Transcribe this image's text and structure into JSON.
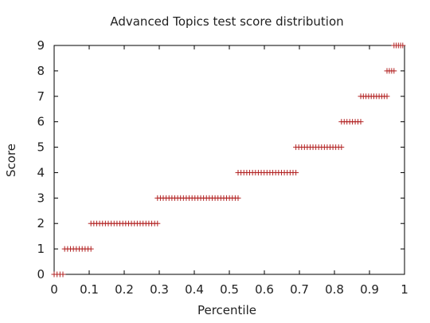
{
  "chart_data": {
    "type": "scatter",
    "title": "Advanced Topics test score distribution",
    "xlabel": "Percentile",
    "ylabel": "Score",
    "xlim": [
      0,
      1
    ],
    "ylim": [
      0,
      9
    ],
    "xticks": [
      "0",
      "0.1",
      "0.2",
      "0.3",
      "0.4",
      "0.5",
      "0.6",
      "0.7",
      "0.8",
      "0.9",
      "1"
    ],
    "yticks": [
      "0",
      "1",
      "2",
      "3",
      "4",
      "5",
      "6",
      "7",
      "8",
      "9"
    ],
    "marker": "plus",
    "marker_color": "#b22222",
    "grid": false,
    "legend": "none",
    "series": [
      {
        "score": 0,
        "x_range": [
          0.0,
          0.025
        ],
        "count": 4
      },
      {
        "score": 1,
        "x_range": [
          0.03,
          0.105
        ],
        "count": 10
      },
      {
        "score": 2,
        "x_range": [
          0.105,
          0.295
        ],
        "count": 24
      },
      {
        "score": 3,
        "x_range": [
          0.295,
          0.525
        ],
        "count": 29
      },
      {
        "score": 4,
        "x_range": [
          0.525,
          0.69
        ],
        "count": 21
      },
      {
        "score": 5,
        "x_range": [
          0.69,
          0.82
        ],
        "count": 17
      },
      {
        "score": 6,
        "x_range": [
          0.82,
          0.875
        ],
        "count": 8
      },
      {
        "score": 7,
        "x_range": [
          0.875,
          0.95
        ],
        "count": 11
      },
      {
        "score": 8,
        "x_range": [
          0.95,
          0.97
        ],
        "count": 4
      },
      {
        "score": 9,
        "x_range": [
          0.97,
          0.995
        ],
        "count": 5
      }
    ]
  }
}
